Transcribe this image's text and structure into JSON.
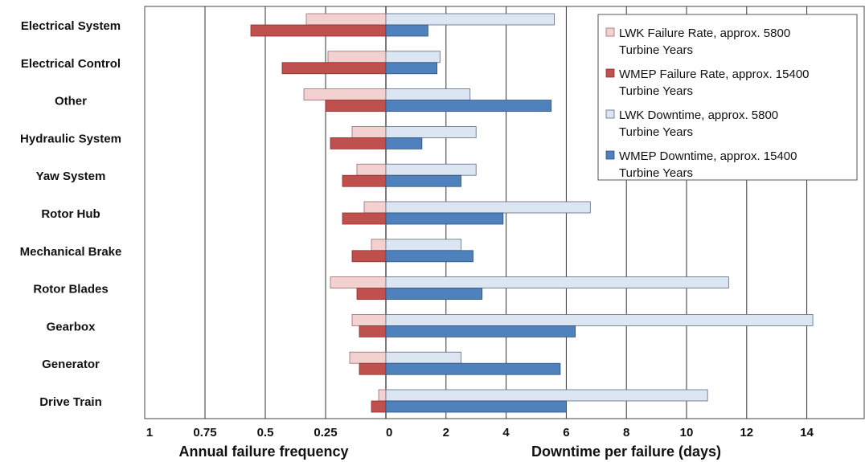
{
  "chart_data": {
    "type": "bar",
    "orientation": "horizontal",
    "layout": "back-to-back",
    "categories": [
      "Electrical System",
      "Electrical Control",
      "Other",
      "Hydraulic System",
      "Yaw System",
      "Rotor Hub",
      "Mechanical Brake",
      "Rotor Blades",
      "Gearbox",
      "Generator",
      "Drive Train"
    ],
    "left_panel": {
      "xlabel": "Annual failure frequency",
      "ticks": [
        "1",
        "0.75",
        "0.5",
        "0.25",
        "0"
      ],
      "xlim": [
        0,
        1
      ],
      "direction": "reversed",
      "series": [
        {
          "name": "LWK Failure Rate, approx. 5800 Turbine Years",
          "color": "#f2d1d0",
          "values": [
            0.33,
            0.24,
            0.34,
            0.14,
            0.12,
            0.09,
            0.06,
            0.23,
            0.14,
            0.15,
            0.03
          ]
        },
        {
          "name": "WMEP Failure Rate, approx. 15400 Turbine Years",
          "color": "#c0504d",
          "values": [
            0.56,
            0.43,
            0.25,
            0.23,
            0.18,
            0.18,
            0.14,
            0.12,
            0.11,
            0.11,
            0.06
          ]
        }
      ]
    },
    "right_panel": {
      "xlabel": "Downtime per failure (days)",
      "ticks": [
        "0",
        "2",
        "4",
        "6",
        "8",
        "10",
        "12",
        "14"
      ],
      "xlim": [
        0,
        15.8
      ],
      "series": [
        {
          "name": "LWK Downtime, approx. 5800 Turbine Years",
          "color": "#dce6f2",
          "values": [
            5.6,
            1.8,
            2.8,
            3.0,
            3.0,
            6.8,
            2.5,
            11.4,
            14.2,
            2.5,
            10.7
          ]
        },
        {
          "name": "WMEP Downtime, approx. 15400 Turbine Years",
          "color": "#4f81bd",
          "values": [
            1.4,
            1.7,
            5.5,
            1.2,
            2.5,
            3.9,
            2.9,
            3.2,
            6.3,
            5.8,
            6.0
          ]
        }
      ]
    },
    "legend": {
      "placement": "top-right",
      "entries": [
        {
          "lines": [
            "LWK Failure Rate, approx. 5800",
            "Turbine Years"
          ],
          "color": "#f2d1d0"
        },
        {
          "lines": [
            "WMEP Failure Rate, approx. 15400",
            "Turbine Years"
          ],
          "color": "#c0504d"
        },
        {
          "lines": [
            "LWK Downtime, approx. 5800",
            "Turbine Years"
          ],
          "color": "#dce6f2"
        },
        {
          "lines": [
            "WMEP Downtime, approx. 15400",
            "Turbine Years"
          ],
          "color": "#4f81bd"
        }
      ]
    },
    "grid": true
  }
}
